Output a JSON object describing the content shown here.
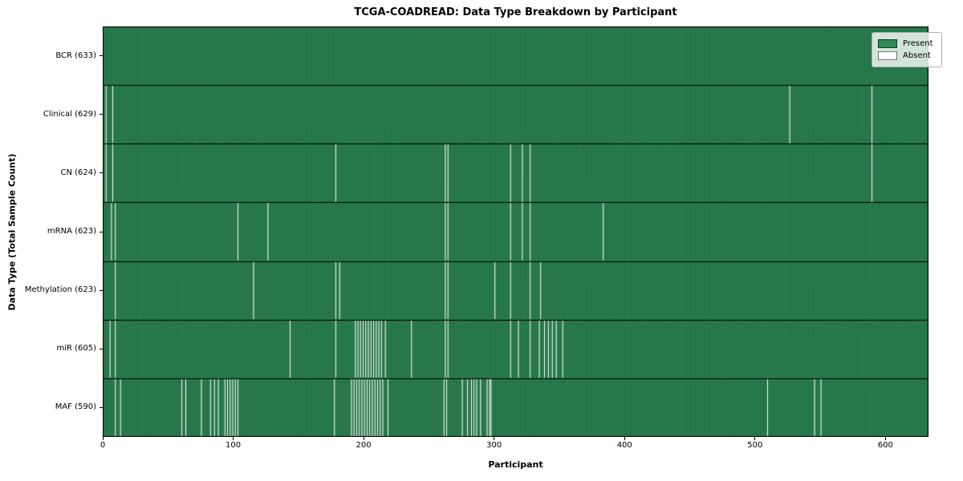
{
  "figure": {
    "title": "TCGA-COADREAD: Data Type Breakdown by Participant"
  },
  "colors": {
    "present": "#2e8b57",
    "absent": "#ffffff",
    "bar_edge": "rgba(0,0,0,0.42)",
    "axis": "#000000"
  },
  "chart_data": {
    "type": "heatmap",
    "title": "TCGA-COADREAD: Data Type Breakdown by Participant",
    "xlabel": "Participant",
    "ylabel": "Data Type (Total Sample Count)",
    "n_participants": 633,
    "xlim": [
      0,
      633
    ],
    "xticks": [
      0,
      100,
      200,
      300,
      400,
      500,
      600
    ],
    "grid": false,
    "legend": [
      "Present",
      "Absent"
    ],
    "legend_position": "upper right",
    "cell_states": {
      "present": 1,
      "absent": 0
    },
    "rows": [
      {
        "label": "BCR (633)",
        "name": "BCR",
        "total_samples": 633,
        "absent_count": 0,
        "absent_participants": []
      },
      {
        "label": "Clinical (629)",
        "name": "Clinical",
        "total_samples": 629,
        "absent_count": 4,
        "absent_participants": [
          2,
          7,
          526,
          589
        ]
      },
      {
        "label": "CN (624)",
        "name": "CN",
        "total_samples": 624,
        "absent_count": 9,
        "absent_participants": [
          2,
          7,
          178,
          262,
          264,
          312,
          321,
          327,
          589
        ]
      },
      {
        "label": "mRNA (623)",
        "name": "mRNA",
        "total_samples": 623,
        "absent_count": 10,
        "absent_participants": [
          6,
          9,
          103,
          126,
          262,
          264,
          312,
          321,
          327,
          383
        ]
      },
      {
        "label": "Methylation (623)",
        "name": "Methylation",
        "total_samples": 623,
        "absent_count": 10,
        "absent_participants": [
          9,
          115,
          178,
          181,
          262,
          264,
          300,
          312,
          327,
          335
        ]
      },
      {
        "label": "miR (605)",
        "name": "miR",
        "total_samples": 605,
        "absent_count": 28,
        "absent_participants": [
          5,
          9,
          143,
          178,
          193,
          195,
          197,
          199,
          201,
          203,
          205,
          207,
          209,
          211,
          213,
          216,
          236,
          262,
          264,
          312,
          318,
          327,
          334,
          338,
          341,
          344,
          347,
          352
        ]
      },
      {
        "label": "MAF (590)",
        "name": "MAF",
        "total_samples": 590,
        "absent_count": 43,
        "absent_participants": [
          9,
          13,
          60,
          63,
          75,
          82,
          85,
          88,
          93,
          95,
          97,
          99,
          101,
          103,
          177,
          190,
          192,
          194,
          196,
          198,
          200,
          202,
          204,
          206,
          208,
          210,
          212,
          214,
          218,
          261,
          263,
          275,
          279,
          282,
          284,
          286,
          289,
          294,
          296,
          297,
          509,
          545,
          550
        ]
      }
    ]
  }
}
